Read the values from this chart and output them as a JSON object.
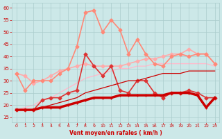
{
  "x": [
    0,
    1,
    2,
    3,
    4,
    5,
    6,
    7,
    8,
    9,
    10,
    11,
    12,
    13,
    14,
    15,
    16,
    17,
    18,
    19,
    20,
    21,
    22,
    23
  ],
  "series": [
    {
      "name": "line1_darkest_red_thick",
      "color": "#cc0000",
      "linewidth": 2.5,
      "marker": "+",
      "markersize": 3,
      "zorder": 6,
      "values": [
        18,
        18,
        18,
        19,
        19,
        19,
        20,
        21,
        22,
        23,
        23,
        23,
        24,
        24,
        24,
        24,
        24,
        24,
        25,
        25,
        25,
        24,
        19,
        23
      ]
    },
    {
      "name": "line2_dark_red_thin",
      "color": "#cc0000",
      "linewidth": 0.9,
      "marker": null,
      "markersize": 0,
      "zorder": 5,
      "values": [
        18,
        18,
        18,
        19,
        20,
        21,
        22,
        23,
        25,
        26,
        27,
        28,
        29,
        30,
        30,
        31,
        32,
        33,
        33,
        33,
        34,
        34,
        34,
        34
      ]
    },
    {
      "name": "line3_medium_red_diamond",
      "color": "#dd3333",
      "linewidth": 1.2,
      "marker": "D",
      "markersize": 2.5,
      "zorder": 4,
      "values": [
        18,
        18,
        18,
        22,
        23,
        23,
        25,
        26,
        41,
        36,
        32,
        36,
        26,
        25,
        30,
        30,
        25,
        23,
        25,
        25,
        26,
        25,
        23,
        23
      ]
    },
    {
      "name": "line4_salmon_diamond",
      "color": "#ff8877",
      "linewidth": 1.2,
      "marker": "D",
      "markersize": 2.5,
      "zorder": 3,
      "values": [
        33,
        26,
        30,
        30,
        30,
        33,
        35,
        44,
        58,
        59,
        50,
        55,
        51,
        41,
        47,
        41,
        37,
        36,
        40,
        41,
        40,
        41,
        41,
        37
      ]
    },
    {
      "name": "line5_light_pink_diamond",
      "color": "#ffaaaa",
      "linewidth": 1.2,
      "marker": "D",
      "markersize": 2.5,
      "zorder": 2,
      "values": [
        33,
        32,
        29,
        30,
        32,
        34,
        35,
        36,
        37,
        36,
        36,
        36,
        36,
        37,
        38,
        39,
        39,
        40,
        41,
        41,
        43,
        41,
        41,
        37
      ]
    },
    {
      "name": "line6_very_light_no_marker",
      "color": "#ffbbcc",
      "linewidth": 1.0,
      "marker": null,
      "markersize": 0,
      "zorder": 1,
      "values": [
        18,
        19,
        20,
        22,
        23,
        25,
        27,
        29,
        31,
        32,
        33,
        34,
        35,
        35,
        36,
        36,
        37,
        37,
        37,
        37,
        37,
        37,
        37,
        36
      ]
    }
  ],
  "xlabel": "Vent moyen/en rafales ( km/h )",
  "xlim": [
    -0.5,
    23.5
  ],
  "ylim": [
    13,
    62
  ],
  "yticks": [
    15,
    20,
    25,
    30,
    35,
    40,
    45,
    50,
    55,
    60
  ],
  "xticks": [
    0,
    1,
    2,
    3,
    4,
    5,
    6,
    7,
    8,
    9,
    10,
    11,
    12,
    13,
    14,
    15,
    16,
    17,
    18,
    19,
    20,
    21,
    22,
    23
  ],
  "background_color": "#cce8e8",
  "grid_color": "#aacccc",
  "tick_color": "#cc0000",
  "label_color": "#cc0000"
}
